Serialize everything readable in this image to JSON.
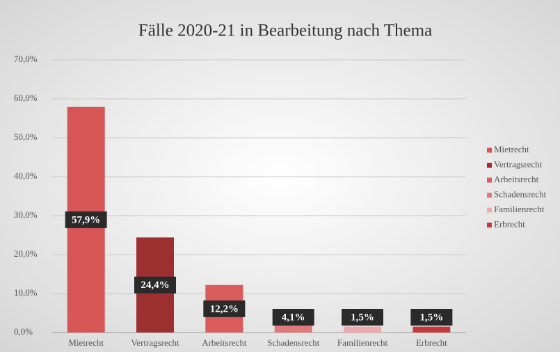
{
  "chart_data": {
    "type": "bar",
    "title": "Fälle 2020-21 in Bearbeitung nach Thema",
    "categories": [
      "Mietrecht",
      "Vertragsrecht",
      "Arbeitsrecht",
      "Schadensrecht",
      "Familienrecht",
      "Erbrecht"
    ],
    "values": [
      57.9,
      24.4,
      12.2,
      4.1,
      1.5,
      1.5
    ],
    "value_labels": [
      "57,9%",
      "24,4%",
      "12,2%",
      "4,1%",
      "1,5%",
      "1,5%"
    ],
    "colors": [
      "#d65656",
      "#9c3030",
      "#d95c5c",
      "#e07a7a",
      "#eeaaaa",
      "#c43a3a"
    ],
    "ylim": [
      0,
      70
    ],
    "yticks": [
      {
        "value": 0,
        "label": "0,0%"
      },
      {
        "value": 10,
        "label": "10,0%"
      },
      {
        "value": 20,
        "label": "20,0%"
      },
      {
        "value": 30,
        "label": "30,0%"
      },
      {
        "value": 40,
        "label": "40,0%"
      },
      {
        "value": 50,
        "label": "50,0%"
      },
      {
        "value": 60,
        "label": "60,0%"
      },
      {
        "value": 70,
        "label": "70,0%"
      }
    ],
    "grid": true,
    "legend": "right"
  }
}
